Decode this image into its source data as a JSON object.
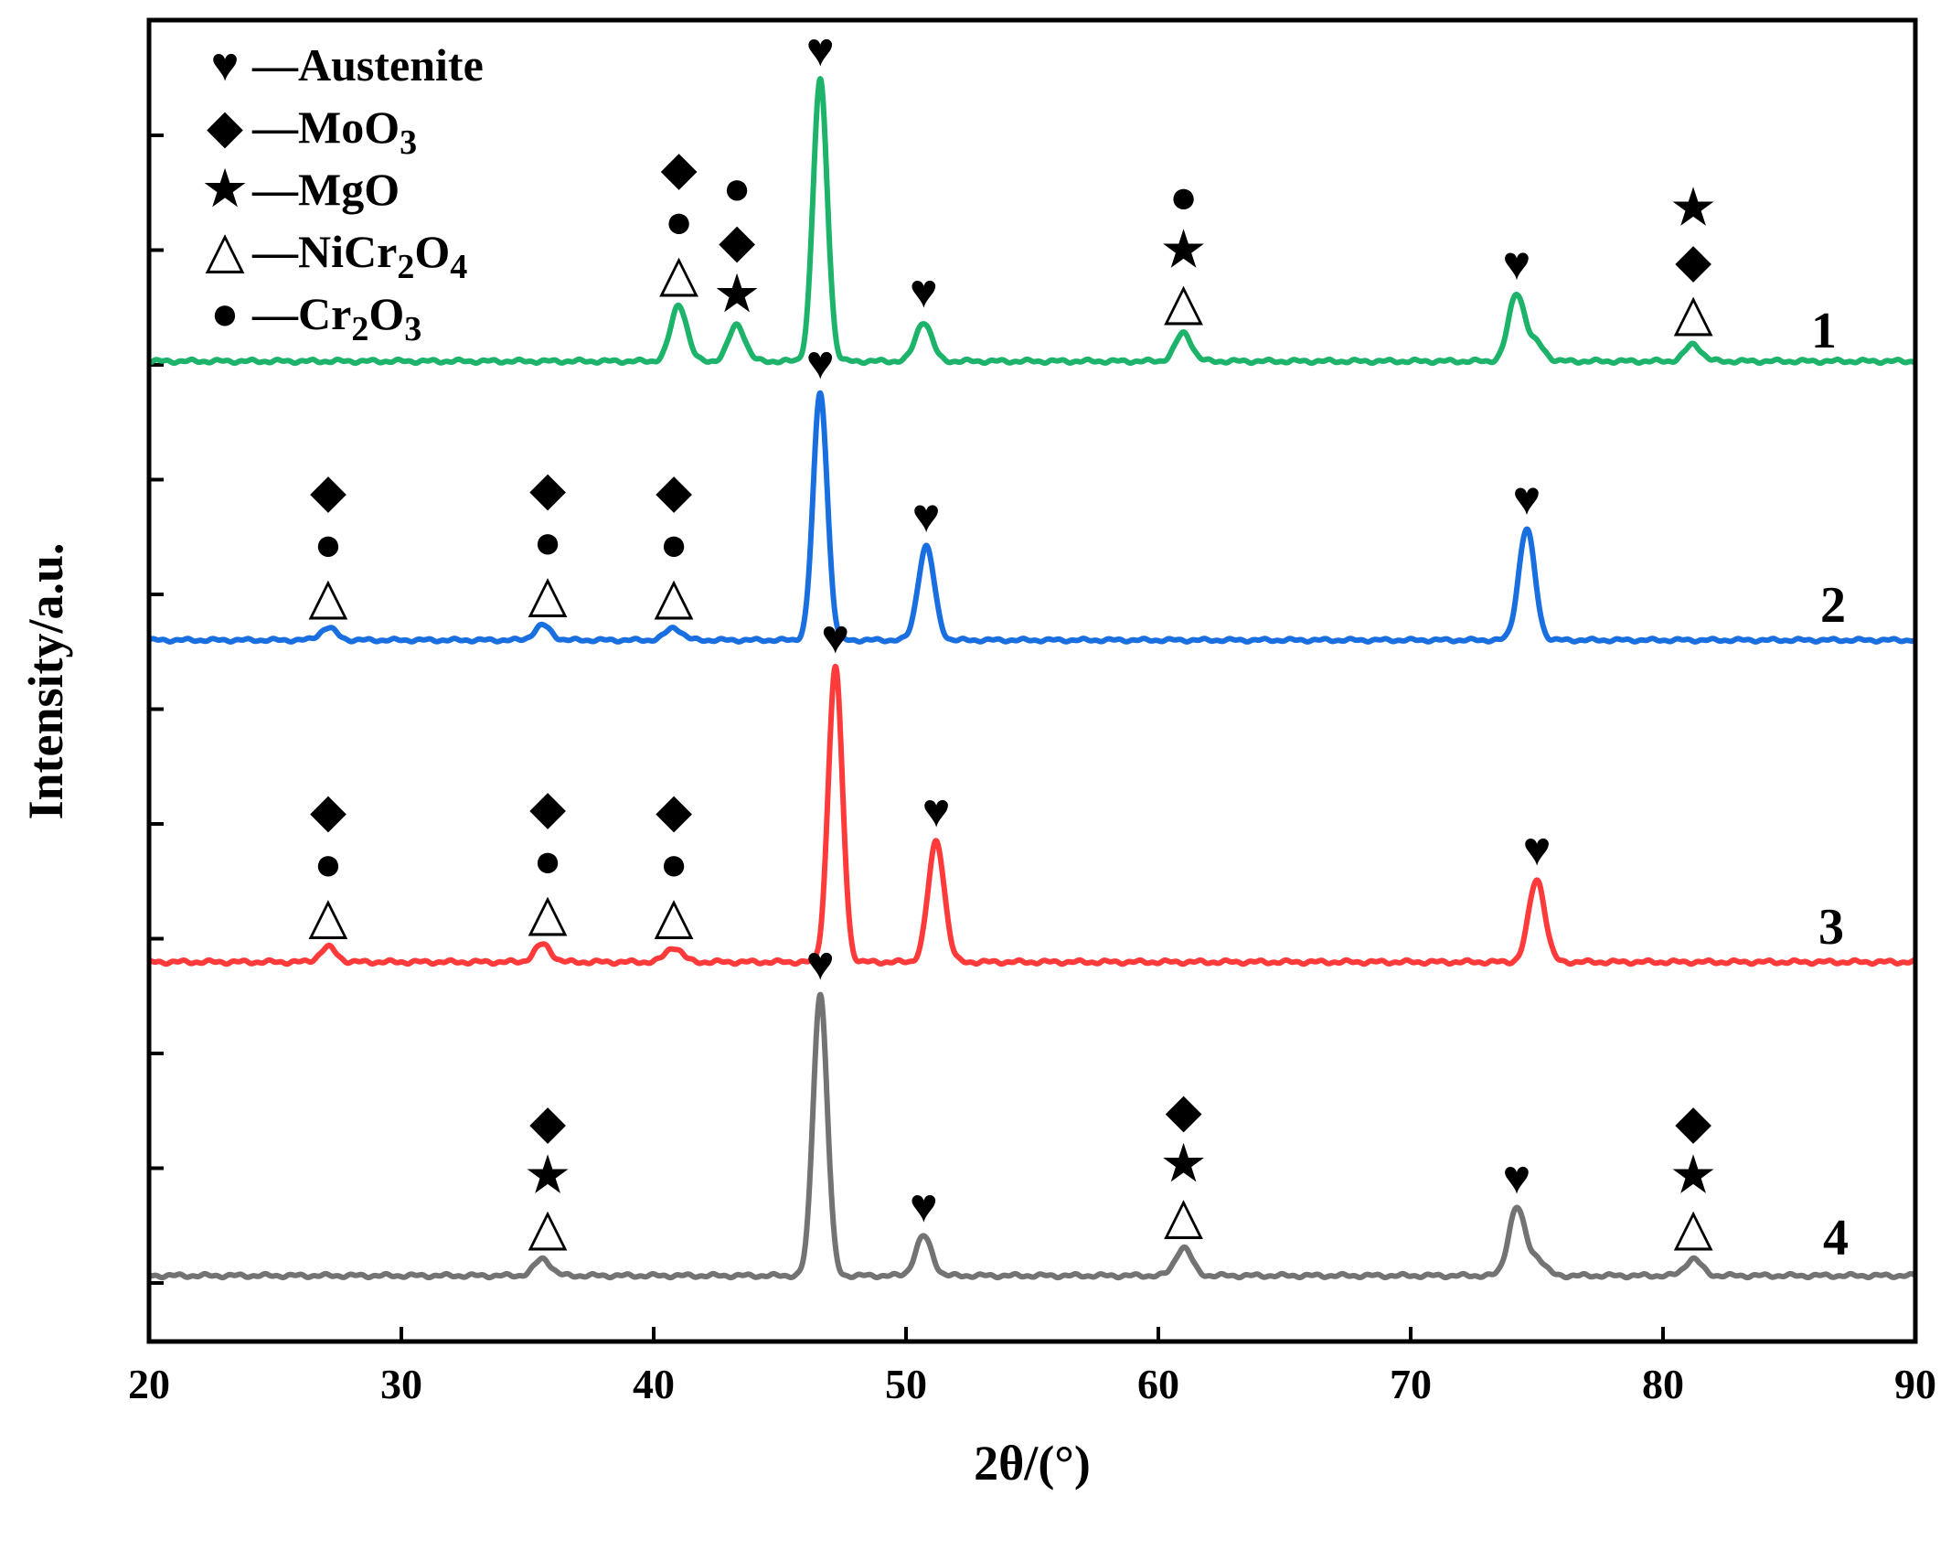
{
  "chart_data": {
    "type": "line",
    "xlabel": "2θ/(°)",
    "ylabel": "Intensity/a.u.",
    "xlim": [
      20,
      90
    ],
    "x_ticks": [
      20,
      30,
      40,
      50,
      60,
      70,
      80,
      90
    ],
    "legend_placement": "top-left",
    "legend": [
      {
        "symbol": "heart",
        "glyph": "♥",
        "dash": "—",
        "text": "Austenite",
        "sub": []
      },
      {
        "symbol": "diamond",
        "glyph": "◆",
        "dash": "—",
        "text": "MoO3",
        "sub": [
          {
            "t": "MoO"
          },
          {
            "t": "3",
            "s": true
          }
        ]
      },
      {
        "symbol": "star",
        "glyph": "★",
        "dash": "—",
        "text": "MgO",
        "sub": [
          {
            "t": "MgO"
          }
        ]
      },
      {
        "symbol": "triangle",
        "glyph": "△",
        "dash": "—",
        "text": "NiCr2O4",
        "sub": [
          {
            "t": "NiCr"
          },
          {
            "t": "2",
            "s": true
          },
          {
            "t": "O"
          },
          {
            "t": "4",
            "s": true
          }
        ]
      },
      {
        "symbol": "circle",
        "glyph": "●",
        "dash": "—",
        "text": "Cr2O3",
        "sub": [
          {
            "t": "Cr"
          },
          {
            "t": "2",
            "s": true
          },
          {
            "t": "O"
          },
          {
            "t": "3",
            "s": true
          }
        ]
      }
    ],
    "series": [
      {
        "name": "1",
        "color": "#1db36a",
        "peaks": [
          {
            "x": 41.0,
            "h": 0.2
          },
          {
            "x": 43.3,
            "h": 0.13
          },
          {
            "x": 46.6,
            "h": 1.0
          },
          {
            "x": 50.7,
            "h": 0.14
          },
          {
            "x": 61.0,
            "h": 0.1
          },
          {
            "x": 74.2,
            "h": 0.24
          },
          {
            "x": 75.0,
            "h": 0.06
          },
          {
            "x": 81.2,
            "h": 0.06
          }
        ],
        "markers": [
          {
            "x": 41.0,
            "stack": [
              "triangle",
              "circle",
              "diamond"
            ]
          },
          {
            "x": 43.3,
            "stack": [
              "star",
              "diamond",
              "circle"
            ]
          },
          {
            "x": 46.6,
            "stack": [
              "heart"
            ]
          },
          {
            "x": 50.7,
            "stack": [
              "heart"
            ]
          },
          {
            "x": 61.0,
            "stack": [
              "triangle",
              "star",
              "circle"
            ]
          },
          {
            "x": 74.2,
            "stack": [
              "heart"
            ]
          },
          {
            "x": 81.2,
            "stack": [
              "triangle",
              "diamond",
              "star"
            ]
          }
        ]
      },
      {
        "name": "2",
        "color": "#1a6fe0",
        "peaks": [
          {
            "x": 27.1,
            "h": 0.05
          },
          {
            "x": 35.6,
            "h": 0.06
          },
          {
            "x": 40.8,
            "h": 0.05
          },
          {
            "x": 46.6,
            "h": 1.0
          },
          {
            "x": 50.8,
            "h": 0.38
          },
          {
            "x": 74.6,
            "h": 0.45
          }
        ],
        "markers": [
          {
            "x": 27.1,
            "stack": [
              "triangle",
              "circle",
              "diamond"
            ]
          },
          {
            "x": 35.8,
            "stack": [
              "triangle",
              "circle",
              "diamond"
            ]
          },
          {
            "x": 40.8,
            "stack": [
              "triangle",
              "circle",
              "diamond"
            ]
          },
          {
            "x": 46.6,
            "stack": [
              "heart"
            ]
          },
          {
            "x": 50.8,
            "stack": [
              "heart"
            ]
          },
          {
            "x": 74.6,
            "stack": [
              "heart"
            ]
          }
        ]
      },
      {
        "name": "3",
        "color": "#ff3a3a",
        "peaks": [
          {
            "x": 27.1,
            "h": 0.05
          },
          {
            "x": 35.6,
            "h": 0.06
          },
          {
            "x": 40.8,
            "h": 0.05
          },
          {
            "x": 47.2,
            "h": 1.0
          },
          {
            "x": 51.2,
            "h": 0.41
          },
          {
            "x": 75.0,
            "h": 0.28
          }
        ],
        "markers": [
          {
            "x": 27.1,
            "stack": [
              "triangle",
              "circle",
              "diamond"
            ]
          },
          {
            "x": 35.8,
            "stack": [
              "triangle",
              "circle",
              "diamond"
            ]
          },
          {
            "x": 40.8,
            "stack": [
              "triangle",
              "circle",
              "diamond"
            ]
          },
          {
            "x": 47.2,
            "stack": [
              "heart"
            ]
          },
          {
            "x": 51.2,
            "stack": [
              "heart"
            ]
          },
          {
            "x": 75.0,
            "stack": [
              "heart"
            ]
          }
        ]
      },
      {
        "name": "4",
        "color": "#737373",
        "peaks": [
          {
            "x": 35.6,
            "h": 0.06
          },
          {
            "x": 46.6,
            "h": 1.0
          },
          {
            "x": 50.7,
            "h": 0.14
          },
          {
            "x": 61.0,
            "h": 0.1
          },
          {
            "x": 74.2,
            "h": 0.24
          },
          {
            "x": 75.0,
            "h": 0.06
          },
          {
            "x": 81.2,
            "h": 0.06
          }
        ],
        "markers": [
          {
            "x": 35.8,
            "stack": [
              "triangle",
              "star",
              "diamond"
            ]
          },
          {
            "x": 46.6,
            "stack": [
              "heart"
            ]
          },
          {
            "x": 50.7,
            "stack": [
              "heart"
            ]
          },
          {
            "x": 61.0,
            "stack": [
              "triangle",
              "star",
              "diamond"
            ]
          },
          {
            "x": 74.2,
            "stack": [
              "heart"
            ]
          },
          {
            "x": 81.2,
            "stack": [
              "triangle",
              "star",
              "diamond"
            ]
          }
        ]
      }
    ]
  }
}
